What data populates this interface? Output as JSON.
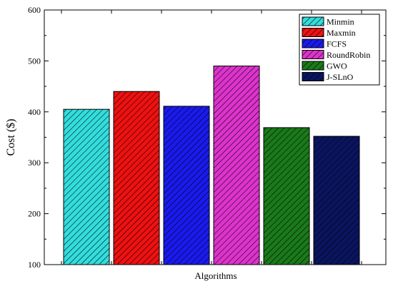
{
  "chart_data": {
    "type": "bar",
    "xlabel": "Algorithms",
    "ylabel": "Cost ($)",
    "ylim": [
      100,
      600
    ],
    "yticks": [
      100,
      200,
      300,
      400,
      500,
      600
    ],
    "grid": false,
    "legend_position": "top-right",
    "categories": [
      "Minmin",
      "Maxmin",
      "FCFS",
      "RoundRobin",
      "GWO",
      "J-SLnO"
    ],
    "values": [
      405,
      440,
      411,
      490,
      369,
      352
    ],
    "colors": [
      "#33dddd",
      "#ee1111",
      "#1a1aee",
      "#dd33cc",
      "#1a7a1a",
      "#0a1560"
    ],
    "pattern": "diagonal-hatch"
  }
}
